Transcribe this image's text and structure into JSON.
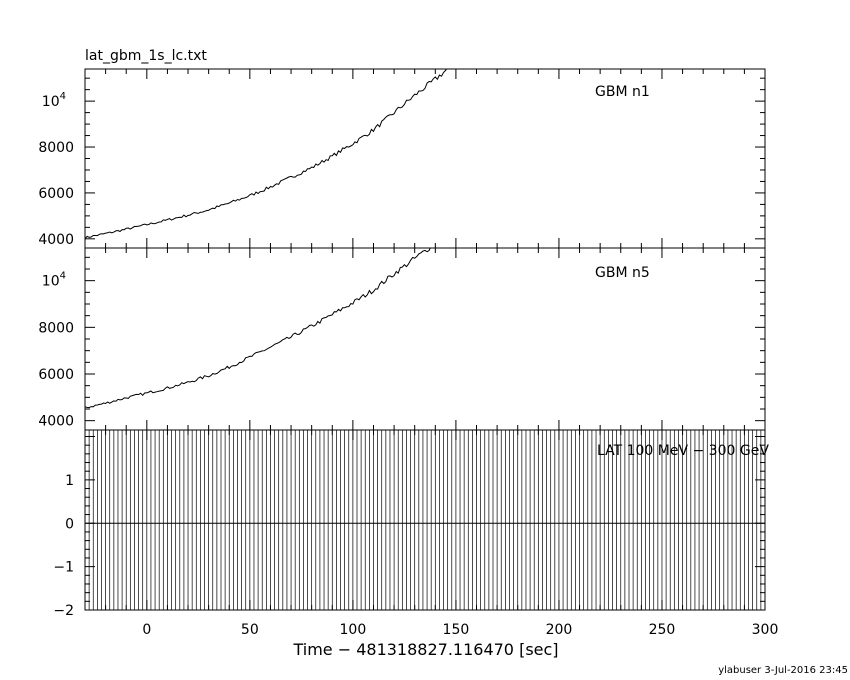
{
  "file_title": "lat_gbm_1s_lc.txt",
  "footer": "ylabuser  3-Jul-2016 23:45",
  "xlabel": "Time − 481318827.116470 [sec]",
  "chart_data": [
    {
      "type": "line",
      "label": "GBM n1",
      "xlim": [
        -30,
        300
      ],
      "ylim": [
        3600,
        11400
      ],
      "y_ticks": [
        {
          "value": 4000,
          "label": "4000"
        },
        {
          "value": 6000,
          "label": "6000"
        },
        {
          "value": 8000,
          "label": "8000"
        },
        {
          "value": 10000,
          "label": "10",
          "sup": "4"
        }
      ],
      "series": [
        {
          "x": [
            -30,
            -20,
            -10,
            0,
            10,
            20,
            30,
            40,
            50,
            60,
            70,
            80,
            90,
            100,
            110,
            120,
            130,
            140,
            146
          ],
          "y": [
            4050,
            4230,
            4420,
            4620,
            4820,
            5030,
            5260,
            5560,
            5880,
            6260,
            6680,
            7100,
            7600,
            8150,
            8750,
            9500,
            10250,
            10950,
            11400
          ]
        }
      ]
    },
    {
      "type": "line",
      "label": "GBM n5",
      "xlim": [
        -30,
        300
      ],
      "ylim": [
        3600,
        11400
      ],
      "y_ticks": [
        {
          "value": 4000,
          "label": "4000"
        },
        {
          "value": 6000,
          "label": "6000"
        },
        {
          "value": 8000,
          "label": "8000"
        },
        {
          "value": 10000,
          "label": "10",
          "sup": "4"
        }
      ],
      "series": [
        {
          "x": [
            -30,
            -20,
            -10,
            0,
            10,
            20,
            30,
            40,
            50,
            60,
            70,
            80,
            90,
            100,
            110,
            120,
            130,
            140,
            146
          ],
          "y": [
            4550,
            4750,
            4980,
            5180,
            5400,
            5640,
            5930,
            6300,
            6720,
            7150,
            7580,
            8050,
            8550,
            9050,
            9600,
            10300,
            10950,
            11600,
            12000
          ]
        }
      ]
    },
    {
      "type": "line",
      "label": "LAT 100 MeV − 300 GeV",
      "xlim": [
        -30,
        300
      ],
      "ylim": [
        -2,
        2.15
      ],
      "y_ticks": [
        {
          "value": -2,
          "label": "−2"
        },
        {
          "value": -1,
          "label": "−1"
        },
        {
          "value": 0,
          "label": "0"
        },
        {
          "value": 1,
          "label": "1"
        }
      ],
      "series": [
        {
          "x": [
            -30,
            300
          ],
          "y": [
            0,
            0
          ]
        }
      ],
      "x_ticks": [
        {
          "value": 0,
          "label": "0"
        },
        {
          "value": 50,
          "label": "50"
        },
        {
          "value": 100,
          "label": "100"
        },
        {
          "value": 150,
          "label": "150"
        },
        {
          "value": 200,
          "label": "200"
        },
        {
          "value": 250,
          "label": "250"
        },
        {
          "value": 300,
          "label": "300"
        }
      ]
    }
  ]
}
